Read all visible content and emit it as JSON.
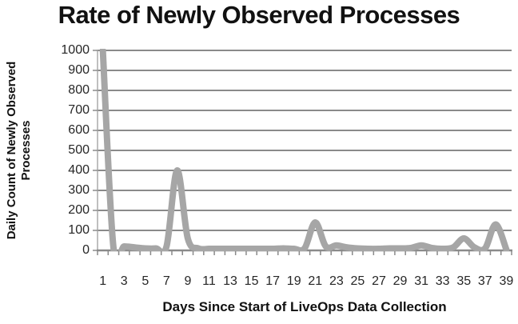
{
  "chart_data": {
    "type": "line",
    "title": "Rate of Newly Observed Processes",
    "xlabel": "Days Since Start of LiveOps Data Collection",
    "ylabel": "Daily Count of Newly Observed\nProcesses",
    "x": [
      1,
      2,
      3,
      4,
      5,
      6,
      7,
      8,
      9,
      10,
      11,
      12,
      13,
      14,
      15,
      16,
      17,
      18,
      19,
      20,
      21,
      22,
      23,
      24,
      25,
      26,
      27,
      28,
      29,
      30,
      31,
      32,
      33,
      34,
      35,
      36,
      37,
      38,
      39
    ],
    "values": [
      1000,
      15,
      20,
      15,
      10,
      10,
      20,
      400,
      60,
      10,
      8,
      8,
      8,
      8,
      8,
      8,
      8,
      10,
      8,
      10,
      140,
      20,
      25,
      15,
      10,
      8,
      8,
      10,
      10,
      12,
      25,
      12,
      8,
      15,
      60,
      15,
      10,
      130,
      5
    ],
    "series_name": "Daily count of newly observed processes",
    "ylim": [
      0,
      1000
    ],
    "yticks": [
      0,
      100,
      200,
      300,
      400,
      500,
      600,
      700,
      800,
      900,
      1000
    ],
    "xtick_labels": [
      "1",
      "3",
      "5",
      "7",
      "9",
      "11",
      "13",
      "15",
      "17",
      "19",
      "21",
      "23",
      "25",
      "27",
      "29",
      "31",
      "33",
      "35",
      "37",
      "39"
    ],
    "grid": "horizontal",
    "legend_position": "none",
    "smoothed_line": true,
    "note_day1_clipped_at_axis_max": true,
    "colors": {
      "line": "#a6a6a6",
      "gridline": "#8a8a8a",
      "axis": "#8a8a8a",
      "axis_vertical": "#aaaaaa",
      "text": "#111111",
      "tick_text": "#262626",
      "background": "#ffffff"
    }
  }
}
